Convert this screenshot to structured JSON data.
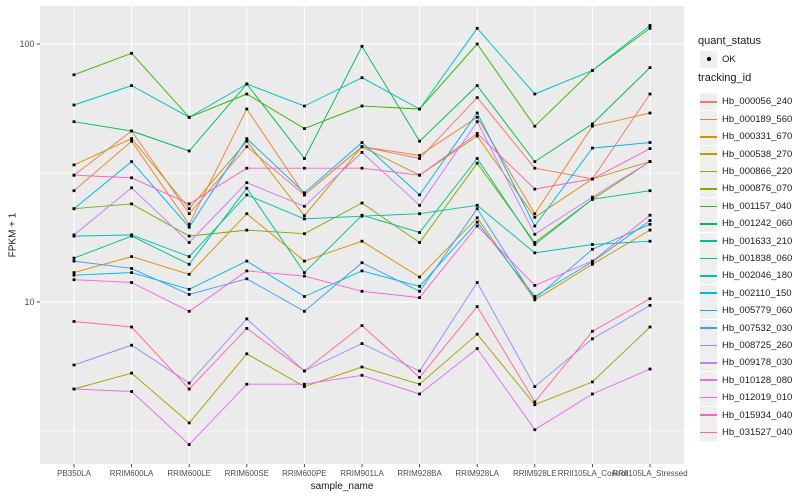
{
  "figure": {
    "panel_color": "#EBEBEB",
    "grid_color": "#FFFFFF",
    "axis_text_color": "#4D4D4D",
    "tick_mark_color": "#333333",
    "point_color": "#000000",
    "legend_key_color": "#EFEFEF"
  },
  "legend": {
    "quant_status_title": "quant_status",
    "ok_label": "OK",
    "tracking_id_title": "tracking_id"
  },
  "chart_data": {
    "type": "line",
    "title": "",
    "x_label": "sample_name",
    "y_label": "FPKM + 1",
    "y_scale": "log10",
    "ylim": [
      2.36,
      140
    ],
    "y_ticks": [
      100,
      10
    ],
    "y_minor_gridlines": [
      31.62,
      3.162
    ],
    "grid": true,
    "legend_position": "right",
    "point_shape": "filled-square",
    "categories": [
      "PB350LA",
      "RRIM600LA",
      "RRIM600LE",
      "RRIM600SE",
      "RRIM600PE",
      "RRIM901LA",
      "RRIM928BA",
      "RRIM928LA",
      "RRIM928LE",
      "RRII105LA_Control",
      "RRII105LA_Stressed"
    ],
    "series": [
      {
        "name": "Hb_000056_240",
        "color": "#F8766D",
        "values": [
          31,
          46,
          22,
          40,
          26,
          40,
          36,
          62,
          33,
          30,
          64
        ]
      },
      {
        "name": "Hb_000189_560",
        "color": "#EA8331",
        "values": [
          27,
          42,
          20,
          56,
          26,
          40,
          37,
          52,
          22,
          48,
          54
        ]
      },
      {
        "name": "Hb_000331_670",
        "color": "#D89000",
        "values": [
          13,
          15,
          12.8,
          22,
          14.4,
          17.2,
          12.5,
          21.2,
          10.2,
          14,
          19
        ]
      },
      {
        "name": "Hb_000538_270",
        "color": "#C09B00",
        "values": [
          34,
          43,
          23,
          42,
          21.6,
          40,
          31,
          44,
          21.3,
          30,
          35
        ]
      },
      {
        "name": "Hb_000866_220",
        "color": "#A3A500",
        "values": [
          4.6,
          5.3,
          3.4,
          6.3,
          4.7,
          5.6,
          4.8,
          7.5,
          4.0,
          4.9,
          8.0
        ]
      },
      {
        "name": "Hb_000876_070",
        "color": "#7CAE00",
        "values": [
          23,
          24,
          18,
          19,
          18.4,
          24.2,
          17,
          34.5,
          17,
          25,
          35
        ]
      },
      {
        "name": "Hb_001157_040",
        "color": "#39B600",
        "values": [
          76,
          92,
          52,
          64,
          47,
          57.5,
          56,
          100,
          48,
          79,
          115
        ]
      },
      {
        "name": "Hb_001242_060",
        "color": "#00BB4E",
        "values": [
          50,
          46,
          38.5,
          70,
          36,
          98,
          42,
          69,
          35,
          49,
          81
        ]
      },
      {
        "name": "Hb_001633_210",
        "color": "#00C087",
        "values": [
          14.8,
          18,
          14,
          27.6,
          13,
          21.7,
          18.6,
          36,
          16.7,
          25,
          27
        ]
      },
      {
        "name": "Hb_001838_060",
        "color": "#00C0B2",
        "values": [
          18,
          18.2,
          15,
          26,
          21,
          21.5,
          22,
          23.7,
          15.5,
          16.7,
          17.2
        ]
      },
      {
        "name": "Hb_002046_180",
        "color": "#00BFC4",
        "values": [
          58,
          69,
          52,
          70,
          57.5,
          74,
          56,
          115,
          64,
          79,
          118
        ]
      },
      {
        "name": "Hb_002110_150",
        "color": "#00BAE0",
        "values": [
          12.7,
          13,
          11.2,
          14.4,
          10.5,
          13.2,
          11.5,
          20.4,
          10.5,
          14.3,
          20.7
        ]
      },
      {
        "name": "Hb_005779_060",
        "color": "#00B0F6",
        "values": [
          23,
          35,
          19.5,
          43,
          26.5,
          41.5,
          26,
          54,
          19.7,
          39.5,
          41.5
        ]
      },
      {
        "name": "Hb_007532_030",
        "color": "#35A2FF",
        "values": [
          14.4,
          13.5,
          10.7,
          12.3,
          9.2,
          14.2,
          11,
          23,
          10.3,
          16,
          20
        ]
      },
      {
        "name": "Hb_008725_260",
        "color": "#9590FF",
        "values": [
          5.7,
          6.8,
          4.85,
          8.6,
          5.4,
          6.9,
          5.4,
          11.9,
          4.7,
          7.2,
          9.7
        ]
      },
      {
        "name": "Hb_009178_030",
        "color": "#C77CFF",
        "values": [
          18.2,
          27.7,
          17,
          29,
          23.5,
          38,
          23.7,
          50,
          18.3,
          25.5,
          35
        ]
      },
      {
        "name": "Hb_010128_080",
        "color": "#E76BF3",
        "values": [
          4.6,
          4.5,
          2.8,
          4.8,
          4.8,
          5.2,
          4.4,
          6.6,
          3.2,
          4.4,
          5.5
        ]
      },
      {
        "name": "Hb_012019_010",
        "color": "#FA62DB",
        "values": [
          12.2,
          11.9,
          9.2,
          13.2,
          12.6,
          11,
          10.4,
          19.7,
          11.6,
          14.4,
          21.7
        ]
      },
      {
        "name": "Hb_015934_040",
        "color": "#FF62BC",
        "values": [
          31,
          30.3,
          24,
          33,
          33,
          33,
          31,
          45,
          27.4,
          30,
          39.3
        ]
      },
      {
        "name": "Hb_031527_040",
        "color": "#FF6A98",
        "values": [
          8.4,
          8.0,
          4.6,
          7.9,
          5.4,
          8.1,
          5.1,
          9.6,
          4.1,
          7.7,
          10.3
        ]
      }
    ]
  }
}
